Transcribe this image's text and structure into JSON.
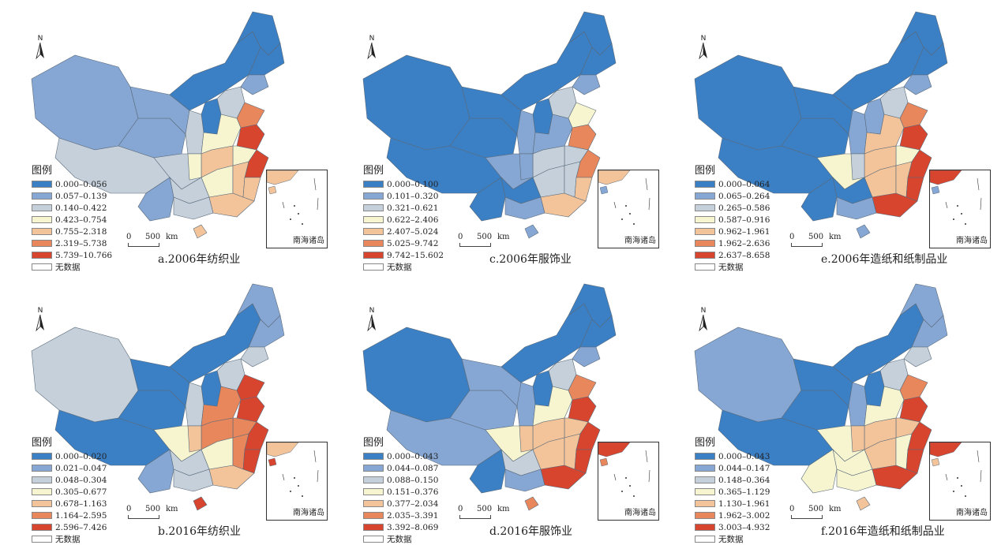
{
  "panels": [
    {
      "id": "a",
      "caption": "a.2006年纺织业",
      "legend_title": "图例",
      "legend": [
        {
          "range": "0.000–0.056",
          "color": "#3b7fc4"
        },
        {
          "range": "0.057–0.139",
          "color": "#86a6d3"
        },
        {
          "range": "0.140–0.422",
          "color": "#c5d0da"
        },
        {
          "range": "0.423–0.754",
          "color": "#f6f5d0"
        },
        {
          "range": "0.755–2.318",
          "color": "#f3c49a"
        },
        {
          "range": "2.319–5.738",
          "color": "#e8875c"
        },
        {
          "range": "5.739–10.766",
          "color": "#d8452f"
        }
      ],
      "no_data": "无数据",
      "north": "N",
      "scale": {
        "zero": "0",
        "value": "500",
        "unit": "km"
      },
      "inset_label": "南海诸岛"
    },
    {
      "id": "c",
      "caption": "c.2006年服饰业",
      "legend_title": "图例",
      "legend": [
        {
          "range": "0.000–0.100",
          "color": "#3b7fc4"
        },
        {
          "range": "0.101–0.320",
          "color": "#86a6d3"
        },
        {
          "range": "0.321–0.621",
          "color": "#c5d0da"
        },
        {
          "range": "0.622–2.406",
          "color": "#f6f5d0"
        },
        {
          "range": "2.407–5.024",
          "color": "#f3c49a"
        },
        {
          "range": "5.025–9.742",
          "color": "#e8875c"
        },
        {
          "range": "9.742–15.602",
          "color": "#d8452f"
        }
      ],
      "no_data": "无数据",
      "north": "N",
      "scale": {
        "zero": "0",
        "value": "500",
        "unit": "km"
      },
      "inset_label": "南海诸岛"
    },
    {
      "id": "e",
      "caption": "e.2006年造纸和纸制品业",
      "legend_title": "图例",
      "legend": [
        {
          "range": "0.000–0.064",
          "color": "#3b7fc4"
        },
        {
          "range": "0.065–0.264",
          "color": "#86a6d3"
        },
        {
          "range": "0.265–0.586",
          "color": "#c5d0da"
        },
        {
          "range": "0.587–0.916",
          "color": "#f6f5d0"
        },
        {
          "range": "0.962–1.961",
          "color": "#f3c49a"
        },
        {
          "range": "1.962–2.636",
          "color": "#e8875c"
        },
        {
          "range": "2.637–8.658",
          "color": "#d8452f"
        }
      ],
      "no_data": "无数据",
      "north": "N",
      "scale": {
        "zero": "0",
        "value": "500",
        "unit": "km"
      },
      "inset_label": "南海诸岛"
    },
    {
      "id": "b",
      "caption": "b.2016年纺织业",
      "legend_title": "图例",
      "legend": [
        {
          "range": "0.000–0.020",
          "color": "#3b7fc4"
        },
        {
          "range": "0.021–0.047",
          "color": "#86a6d3"
        },
        {
          "range": "0.048–0.304",
          "color": "#c5d0da"
        },
        {
          "range": "0.305–0.677",
          "color": "#f6f5d0"
        },
        {
          "range": "0.678–1.163",
          "color": "#f3c49a"
        },
        {
          "range": "1.164–2.595",
          "color": "#e8875c"
        },
        {
          "range": "2.596–7.426",
          "color": "#d8452f"
        }
      ],
      "no_data": "无数据",
      "north": "N",
      "scale": {
        "zero": "0",
        "value": "500",
        "unit": "km"
      },
      "inset_label": "南海诸岛"
    },
    {
      "id": "d",
      "caption": "d.2016年服饰业",
      "legend_title": "图例",
      "legend": [
        {
          "range": "0.000–0.043",
          "color": "#3b7fc4"
        },
        {
          "range": "0.044–0.087",
          "color": "#86a6d3"
        },
        {
          "range": "0.088–0.150",
          "color": "#c5d0da"
        },
        {
          "range": "0.151–0.376",
          "color": "#f6f5d0"
        },
        {
          "range": "0.377–2.034",
          "color": "#f3c49a"
        },
        {
          "range": "2.035–3.391",
          "color": "#e8875c"
        },
        {
          "range": "3.392–8.069",
          "color": "#d8452f"
        }
      ],
      "no_data": "无数据",
      "north": "N",
      "scale": {
        "zero": "0",
        "value": "500",
        "unit": "km"
      },
      "inset_label": "南海诸岛"
    },
    {
      "id": "f",
      "caption": "f.2016年造纸和纸制品业",
      "legend_title": "图例",
      "legend": [
        {
          "range": "0.000–0.043",
          "color": "#3b7fc4"
        },
        {
          "range": "0.044–0.147",
          "color": "#86a6d3"
        },
        {
          "range": "0.148–0.364",
          "color": "#c5d0da"
        },
        {
          "range": "0.365–1.129",
          "color": "#f6f5d0"
        },
        {
          "range": "1.130–1.961",
          "color": "#f3c49a"
        },
        {
          "range": "1.962–3.002",
          "color": "#e8875c"
        },
        {
          "range": "3.003–4.932",
          "color": "#d8452f"
        }
      ],
      "no_data": "无数据",
      "north": "N",
      "scale": {
        "zero": "0",
        "value": "500",
        "unit": "km"
      },
      "inset_label": "南海诸岛"
    }
  ],
  "map_classes": [
    [
      "0",
      "1",
      "2",
      "3",
      "4",
      "5",
      "6"
    ],
    [
      "c0",
      "c1",
      "c2",
      "c3",
      "c4",
      "c5",
      "c6"
    ]
  ]
}
